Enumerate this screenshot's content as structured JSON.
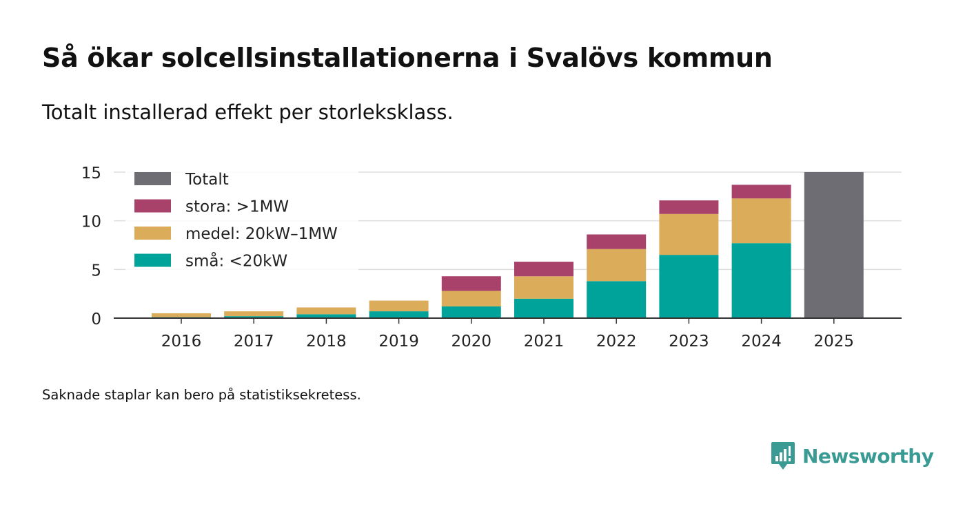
{
  "title": "Så ökar solcellsinstallationerna i Svalövs kommun",
  "subtitle": "Totalt installerad effekt per storleksklass.",
  "note": "Saknade staplar kan bero på statistiksekretess.",
  "brand": {
    "name": "Newsworthy",
    "logo": "newsworthy-logo-icon",
    "color": "#3a9a94"
  },
  "chart_data": {
    "type": "bar",
    "stacked": true,
    "title": "Så ökar solcellsinstallationerna i Svalövs kommun",
    "subtitle": "Totalt installerad effekt per storleksklass.",
    "xlabel": "",
    "ylabel": "",
    "ylim": [
      0,
      15
    ],
    "yticks": [
      0,
      5,
      10,
      15
    ],
    "grid": true,
    "legend_position": "top-left",
    "categories": [
      "2016",
      "2017",
      "2018",
      "2019",
      "2020",
      "2021",
      "2022",
      "2023",
      "2024",
      "2025"
    ],
    "series": [
      {
        "name": "små: <20kW",
        "color": "#00a39a",
        "values": [
          0.1,
          0.2,
          0.4,
          0.7,
          1.2,
          2.0,
          3.8,
          6.5,
          7.7,
          null
        ]
      },
      {
        "name": "medel: 20kW–1MW",
        "color": "#dbad5a",
        "values": [
          0.4,
          0.5,
          0.7,
          1.1,
          1.6,
          2.3,
          3.3,
          4.2,
          4.6,
          null
        ]
      },
      {
        "name": "stora: >1MW",
        "color": "#a8426a",
        "values": [
          0.0,
          0.0,
          0.0,
          0.0,
          1.5,
          1.5,
          1.5,
          1.4,
          1.4,
          null
        ]
      },
      {
        "name": "Totalt",
        "color": "#6e6d73",
        "values": [
          null,
          null,
          null,
          null,
          null,
          null,
          null,
          null,
          null,
          15.0
        ]
      }
    ],
    "legend_order": [
      "Totalt",
      "stora: >1MW",
      "medel: 20kW–1MW",
      "små: <20kW"
    ]
  }
}
